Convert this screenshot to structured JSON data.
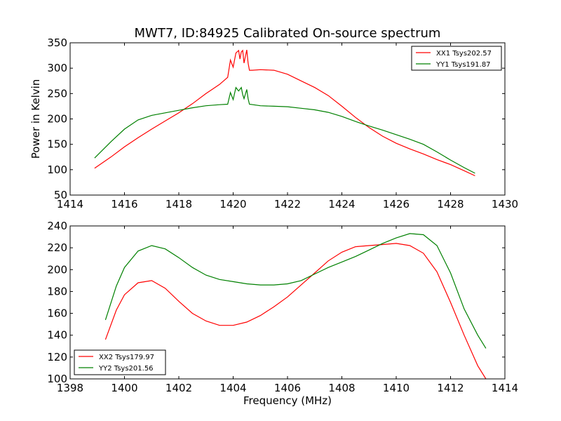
{
  "title": "MWT7, ID:84925 Calibrated On-source spectrum",
  "colors": {
    "red": "#ff0000",
    "green": "#008000"
  },
  "chart_data": [
    {
      "type": "line",
      "ylabel": "Power in Kelvin",
      "xlabel": "",
      "xlim": [
        1414,
        1430
      ],
      "ylim": [
        50,
        350
      ],
      "xticks": [
        1414,
        1416,
        1418,
        1420,
        1422,
        1424,
        1426,
        1428,
        1430
      ],
      "yticks": [
        50,
        100,
        150,
        200,
        250,
        300,
        350
      ],
      "grid": false,
      "legend_position": "top-right",
      "series": [
        {
          "name": "XX1 Tsys202.57",
          "color": "#ff0000",
          "x": [
            1414.9,
            1415.5,
            1416,
            1416.5,
            1417,
            1417.5,
            1418,
            1418.5,
            1419,
            1419.5,
            1419.8,
            1419.9,
            1420.0,
            1420.1,
            1420.2,
            1420.25,
            1420.3,
            1420.35,
            1420.4,
            1420.5,
            1420.55,
            1420.6,
            1420.7,
            1421,
            1421.5,
            1422,
            1422.5,
            1423,
            1423.5,
            1424,
            1424.5,
            1425,
            1425.5,
            1426,
            1426.5,
            1427,
            1427.5,
            1428,
            1428.5,
            1428.9
          ],
          "y": [
            103,
            125,
            145,
            163,
            180,
            196,
            212,
            230,
            250,
            268,
            282,
            316,
            302,
            330,
            335,
            318,
            332,
            335,
            310,
            336,
            310,
            296,
            296,
            297,
            296,
            288,
            275,
            262,
            246,
            225,
            203,
            183,
            166,
            152,
            141,
            131,
            120,
            110,
            98,
            88
          ]
        },
        {
          "name": "YY1 Tsys191.87",
          "color": "#008000",
          "x": [
            1414.9,
            1415.5,
            1416,
            1416.5,
            1417,
            1417.5,
            1418,
            1418.5,
            1419,
            1419.5,
            1419.8,
            1419.9,
            1420.0,
            1420.1,
            1420.2,
            1420.3,
            1420.35,
            1420.4,
            1420.5,
            1420.55,
            1420.6,
            1421,
            1421.5,
            1422,
            1422.5,
            1423,
            1423.5,
            1424,
            1424.5,
            1425,
            1425.5,
            1426,
            1426.5,
            1427,
            1427.5,
            1428,
            1428.5,
            1428.9
          ],
          "y": [
            123,
            155,
            180,
            198,
            207,
            212,
            217,
            222,
            226,
            228,
            229,
            252,
            238,
            262,
            255,
            262,
            248,
            240,
            258,
            240,
            229,
            226,
            225,
            224,
            221,
            218,
            213,
            205,
            195,
            186,
            178,
            169,
            160,
            150,
            135,
            119,
            104,
            93
          ]
        }
      ]
    },
    {
      "type": "line",
      "ylabel": "",
      "xlabel": "Frequency (MHz)",
      "xlim": [
        1398,
        1414
      ],
      "ylim": [
        100,
        240
      ],
      "xticks": [
        1398,
        1400,
        1402,
        1404,
        1406,
        1408,
        1410,
        1412,
        1414
      ],
      "yticks": [
        100,
        120,
        140,
        160,
        180,
        200,
        220,
        240
      ],
      "grid": false,
      "legend_position": "bottom-left",
      "series": [
        {
          "name": "XX2 Tsys179.97",
          "color": "#ff0000",
          "x": [
            1399.3,
            1399.7,
            1400,
            1400.5,
            1401,
            1401.5,
            1402,
            1402.5,
            1403,
            1403.5,
            1404,
            1404.5,
            1405,
            1405.5,
            1406,
            1406.5,
            1407,
            1407.5,
            1408,
            1408.5,
            1409,
            1409.5,
            1410,
            1410.5,
            1411,
            1411.5,
            1412,
            1412.5,
            1413,
            1413.3
          ],
          "y": [
            136,
            163,
            177,
            188,
            190,
            183,
            171,
            160,
            153,
            149,
            149,
            152,
            158,
            166,
            175,
            186,
            197,
            208,
            216,
            221,
            222,
            223,
            224,
            222,
            215,
            198,
            170,
            140,
            112,
            100
          ]
        },
        {
          "name": "YY2 Tsys201.56",
          "color": "#008000",
          "x": [
            1399.3,
            1399.7,
            1400,
            1400.5,
            1401,
            1401.5,
            1402,
            1402.5,
            1403,
            1403.5,
            1404,
            1404.5,
            1405,
            1405.5,
            1406,
            1406.5,
            1407,
            1407.5,
            1408,
            1408.5,
            1409,
            1409.5,
            1410,
            1410.5,
            1411,
            1411.5,
            1412,
            1412.5,
            1413,
            1413.3
          ],
          "y": [
            154,
            185,
            202,
            217,
            222,
            219,
            211,
            202,
            195,
            191,
            189,
            187,
            186,
            186,
            187,
            190,
            196,
            202,
            207,
            212,
            218,
            224,
            229,
            233,
            232,
            222,
            197,
            164,
            140,
            128
          ]
        }
      ]
    }
  ]
}
